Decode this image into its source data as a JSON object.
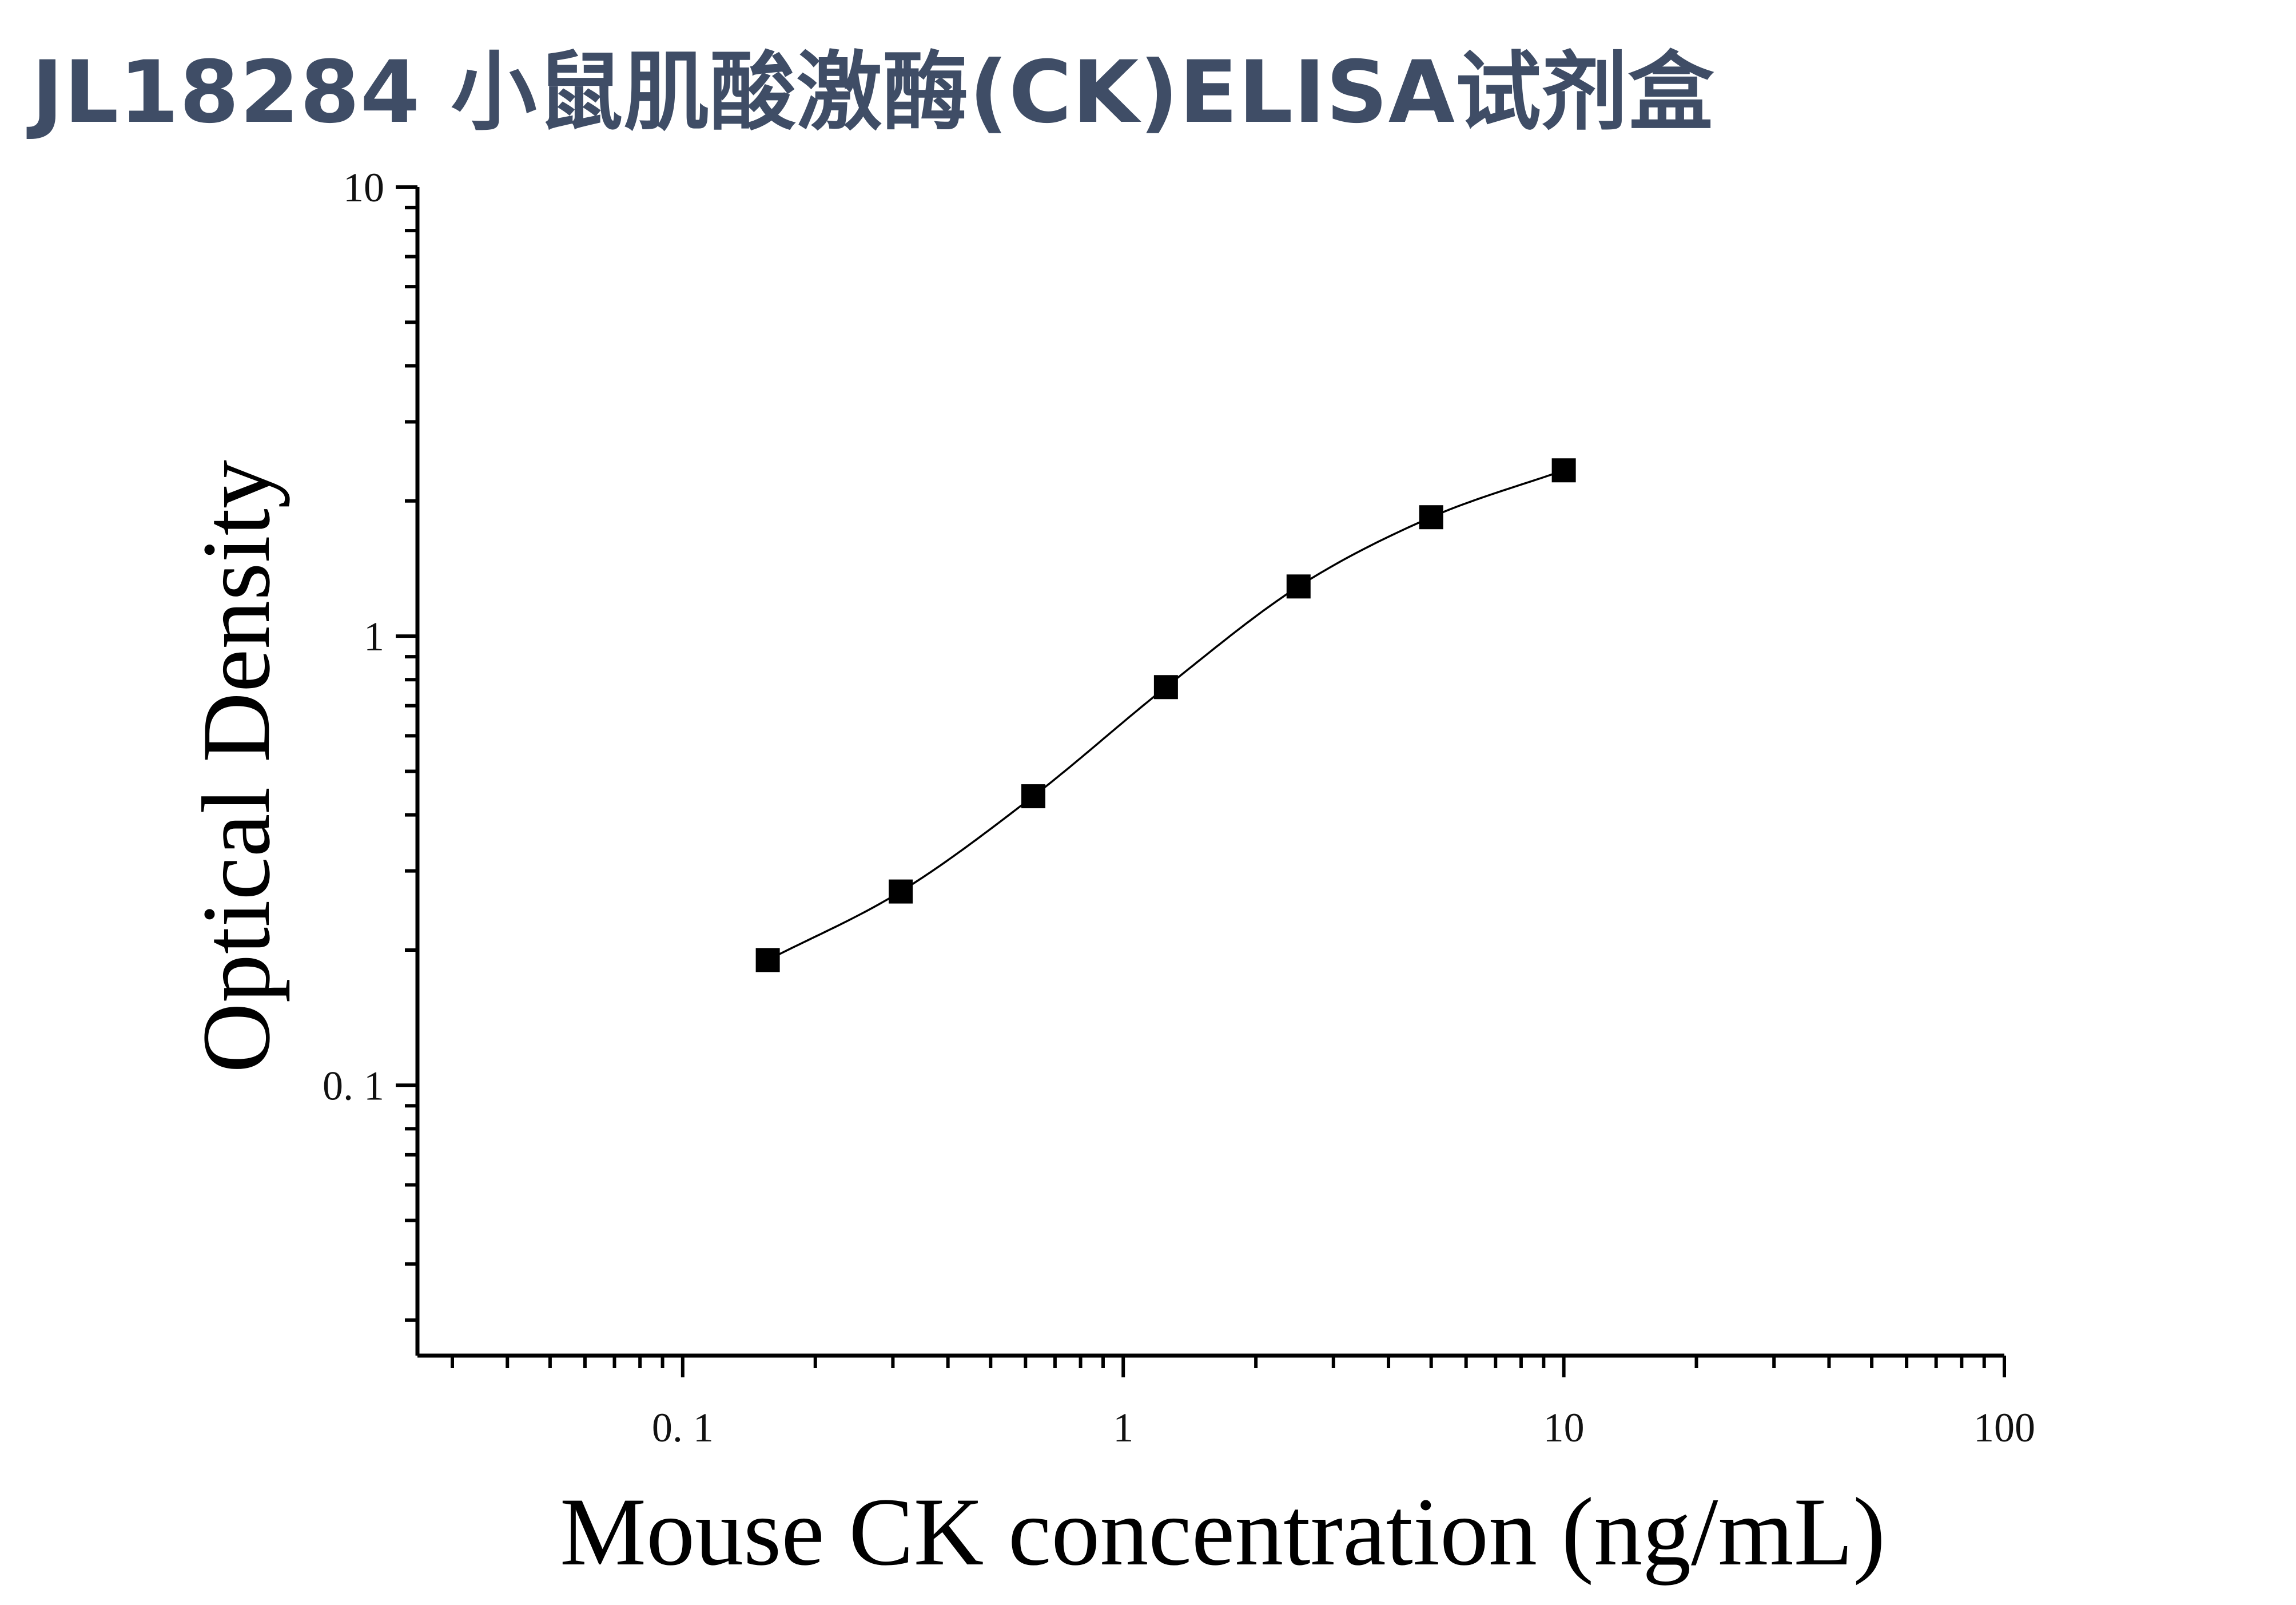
{
  "title": "JL18284 小鼠肌酸激酶(CK)ELISA试剂盒",
  "chart_data": {
    "type": "scatter",
    "title": "JL18284 小鼠肌酸激酶(CK)ELISA试剂盒",
    "xlabel": "Mouse CK concentration (ng/mL)",
    "ylabel": "Optical Density",
    "xscale": "log",
    "yscale": "log",
    "xlim": [
      0.025,
      100
    ],
    "ylim": [
      0.025,
      10
    ],
    "xticks": [
      {
        "value": 0.1,
        "label": "0. 1"
      },
      {
        "value": 1,
        "label": "1"
      },
      {
        "value": 10,
        "label": "10"
      },
      {
        "value": 100,
        "label": "100"
      }
    ],
    "yticks": [
      {
        "value": 0.1,
        "label": "0. 1"
      },
      {
        "value": 1,
        "label": "1"
      },
      {
        "value": 10,
        "label": "10"
      }
    ],
    "grid": false,
    "legend": "none",
    "marker_color": "#000000",
    "curve_color": "#000000",
    "series": [
      {
        "points": [
          {
            "x": 0.156,
            "y": 0.19
          },
          {
            "x": 0.3125,
            "y": 0.27
          },
          {
            "x": 0.625,
            "y": 0.44
          },
          {
            "x": 1.25,
            "y": 0.77
          },
          {
            "x": 2.5,
            "y": 1.29
          },
          {
            "x": 5,
            "y": 1.84
          },
          {
            "x": 10,
            "y": 2.34
          }
        ]
      }
    ],
    "fit_curve": "4-parameter logistic through the standard points"
  }
}
